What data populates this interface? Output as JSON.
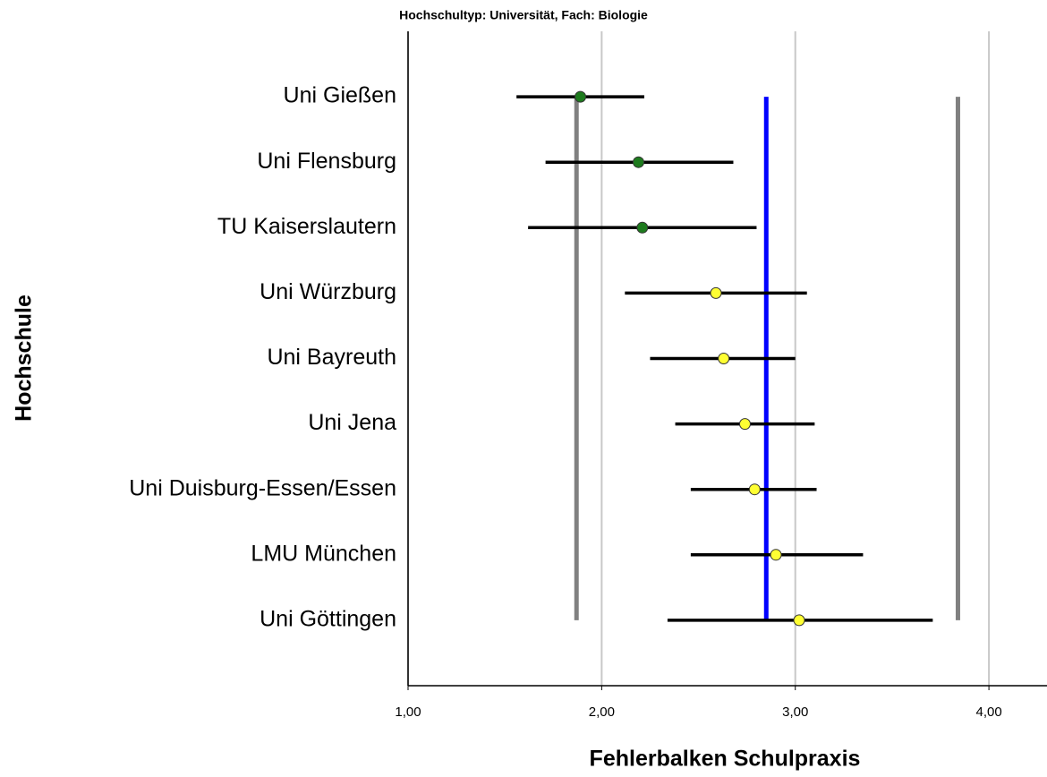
{
  "chart_data": {
    "type": "errorbar",
    "title": "Hochschultyp: Universität, Fach: Biologie",
    "xlabel": "Fehlerbalken Schulpraxis",
    "ylabel": "Hochschule",
    "categories": [
      "Uni Gießen",
      "Uni Flensburg",
      "TU Kaiserslautern",
      "Uni Würzburg",
      "Uni Bayreuth",
      "Uni Jena",
      "Uni Duisburg-Essen/Essen",
      "LMU München",
      "Uni Göttingen"
    ],
    "values": [
      1.89,
      2.19,
      2.21,
      2.59,
      2.63,
      2.74,
      2.79,
      2.9,
      3.02
    ],
    "lower": [
      1.56,
      1.71,
      1.62,
      2.12,
      2.25,
      2.38,
      2.46,
      2.46,
      2.34
    ],
    "upper": [
      2.22,
      2.68,
      2.8,
      3.06,
      3.0,
      3.1,
      3.11,
      3.35,
      3.71
    ],
    "colors": [
      "#1e7b1e",
      "#1e7b1e",
      "#1e7b1e",
      "#ffff33",
      "#ffff33",
      "#ffff33",
      "#ffff33",
      "#ffff33",
      "#ffff33"
    ],
    "errorbar_color": "#000000",
    "reference_lines": [
      {
        "value": 1.87,
        "color": "#808080"
      },
      {
        "value": 2.85,
        "color": "#0000ff"
      },
      {
        "value": 3.84,
        "color": "#808080"
      }
    ],
    "xlim": [
      1,
      4.3
    ],
    "xticks": [
      {
        "value": 1,
        "label": "1,00"
      },
      {
        "value": 2,
        "label": "2,00"
      },
      {
        "value": 3,
        "label": "3,00"
      },
      {
        "value": 4,
        "label": "4,00"
      }
    ],
    "grid": true
  }
}
